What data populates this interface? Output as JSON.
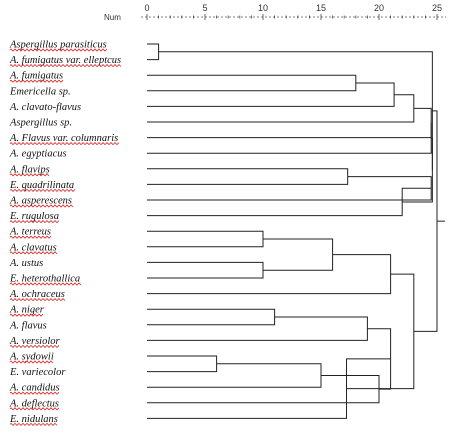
{
  "diagram": {
    "axis": {
      "title": "Num",
      "min": 0,
      "max": 25,
      "ticks": [
        "0",
        "5",
        "10",
        "15",
        "20",
        "25"
      ],
      "tick_values": [
        0,
        5,
        10,
        15,
        20,
        25
      ]
    },
    "leaves": [
      "Aspergillus  parasiticus",
      "A. fumigatus var. elleptcus",
      "A. fumigatus",
      "Emericella sp.",
      "A. clavato-flavus",
      "Aspergillus sp.",
      "A. Flavus var. columnaris",
      "A. egyptiacus",
      "A. flavips",
      "E. quadrilinata",
      "A. asperescens",
      "E. rugulosa",
      "A. terreus",
      "A. clavatus",
      "A. ustus",
      "E. heterothallica",
      "A. ochraceus",
      "A. niger",
      "A. flavus",
      "A. versiolor",
      "A. sydowii",
      "E. variecolor",
      "A. candidus",
      "A. deflectus",
      "E. nidulans"
    ],
    "misspelled_leaves": [
      0,
      1,
      2,
      6,
      8,
      9,
      10,
      11,
      12,
      13,
      15,
      16,
      17,
      19,
      20,
      22,
      23,
      24
    ],
    "merges": [
      {
        "a": "L0",
        "b": "L1",
        "h": 1
      },
      {
        "a": "L2",
        "b": "L3",
        "h": 18
      },
      {
        "a": "m1",
        "b": "L4",
        "h": 21.3
      },
      {
        "a": "m2",
        "b": "L5",
        "h": 23
      },
      {
        "a": "L8",
        "b": "L9",
        "h": 17.3
      },
      {
        "a": "m4",
        "b": "L10",
        "h": 24.5
      },
      {
        "a": "m5",
        "b": "L11",
        "h": 22
      },
      {
        "a": "m3",
        "b": "L6",
        "h": 24.5
      },
      {
        "a": "m7",
        "b": "L7",
        "h": 24.5
      },
      {
        "a": "m8",
        "b": "m6",
        "h": 24.6
      },
      {
        "a": "m0",
        "b": "m9",
        "h": 24.6
      },
      {
        "a": "L12",
        "b": "L13",
        "h": 10
      },
      {
        "a": "L14",
        "b": "L15",
        "h": 10
      },
      {
        "a": "m11",
        "b": "m12",
        "h": 16
      },
      {
        "a": "m13",
        "b": "L16",
        "h": 21
      },
      {
        "a": "L17",
        "b": "L18",
        "h": 11
      },
      {
        "a": "m15",
        "b": "L19",
        "h": 19
      },
      {
        "a": "L20",
        "b": "L21",
        "h": 6
      },
      {
        "a": "m17",
        "b": "L22",
        "h": 15
      },
      {
        "a": "m18",
        "b": "L23",
        "h": 20
      },
      {
        "a": "m16",
        "b": "m19",
        "h": 21
      },
      {
        "a": "m20",
        "b": "L24",
        "h": 17.2
      },
      {
        "a": "m14",
        "b": "m21",
        "h": 23
      },
      {
        "a": "m10",
        "b": "m22",
        "h": 25
      }
    ]
  }
}
